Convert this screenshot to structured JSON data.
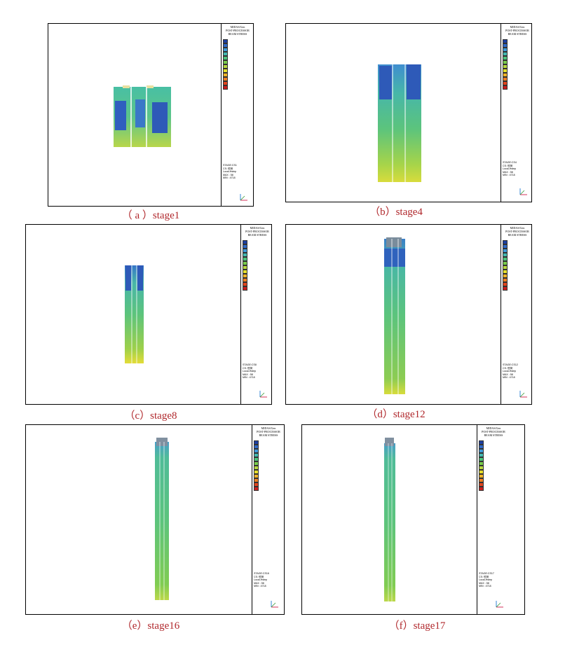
{
  "captions": {
    "a": "（ a ）stage1",
    "b": "（b）stage4",
    "c": "（c）stage8",
    "d": "（d）stage12",
    "e": "（e）stage16",
    "f": "（f）stage17"
  },
  "colors": {
    "legend_scale": [
      "#1d3fa0",
      "#2f69c8",
      "#3f9ad8",
      "#42b8b0",
      "#4cc47a",
      "#78cc4c",
      "#b7d83f",
      "#e6e02c",
      "#f0b428",
      "#ec7d22",
      "#e0441d",
      "#c81e1e"
    ],
    "caption": "#b0282c"
  }
}
